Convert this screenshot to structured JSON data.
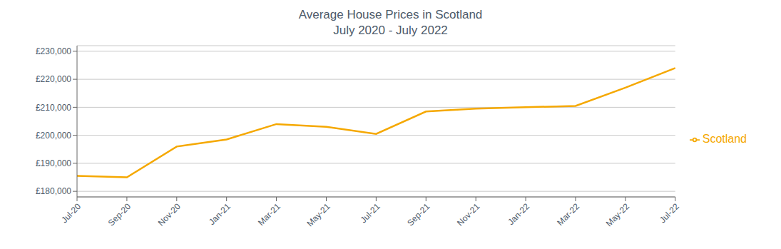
{
  "chart_data": {
    "type": "line",
    "title": "Average House Prices in Scotland",
    "subtitle": "July 2020 - July 2022",
    "categories": [
      "Jul-20",
      "Sep-20",
      "Nov-20",
      "Jan-21",
      "Mar-21",
      "May-21",
      "Jul-21",
      "Sep-21",
      "Nov-21",
      "Jan-22",
      "Mar-22",
      "May-22",
      "Jul-22"
    ],
    "series": [
      {
        "name": "Scotland",
        "color": "#F5A800",
        "values": [
          185500,
          185000,
          196000,
          198500,
          204000,
          203000,
          200500,
          208500,
          209500,
          210000,
          210500,
          217000,
          224000
        ]
      }
    ],
    "ylim": [
      178000,
      232000
    ],
    "yticks": [
      {
        "value": 180000,
        "label": "£180,000"
      },
      {
        "value": 190000,
        "label": "£190,000"
      },
      {
        "value": 200000,
        "label": "£200,000"
      },
      {
        "value": 210000,
        "label": "£210,000"
      },
      {
        "value": 220000,
        "label": "£220,000"
      },
      {
        "value": 230000,
        "label": "£230,000"
      }
    ],
    "grid": true,
    "legend": "right"
  }
}
